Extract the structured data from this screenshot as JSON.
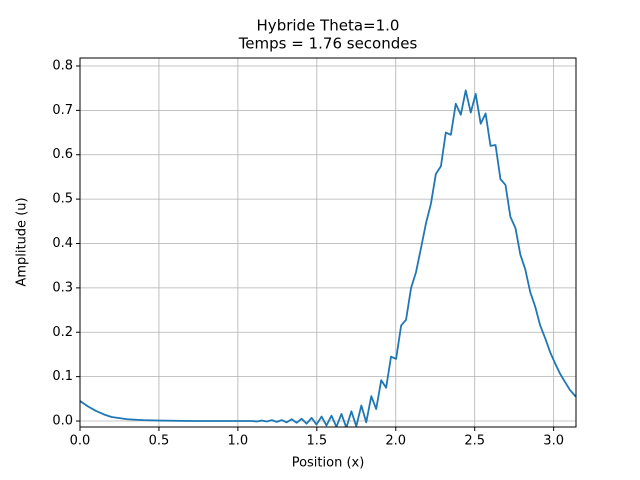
{
  "chart_data": {
    "type": "line",
    "title": [
      "Hybride Theta=1.0",
      "Temps = 1.76 secondes"
    ],
    "xlabel": "Position (x)",
    "ylabel": "Amplitude (u)",
    "x": [
      0,
      0.05,
      0.1,
      0.15,
      0.2,
      0.3,
      0.4,
      0.5,
      0.7,
      1.0,
      1.089,
      1.12,
      1.152,
      1.183,
      1.215,
      1.246,
      1.278,
      1.309,
      1.341,
      1.372,
      1.404,
      1.435,
      1.467,
      1.498,
      1.53,
      1.561,
      1.593,
      1.624,
      1.656,
      1.687,
      1.719,
      1.75,
      1.782,
      1.813,
      1.845,
      1.876,
      1.908,
      1.939,
      1.97,
      2.002,
      2.034,
      2.065,
      2.097,
      2.128,
      2.16,
      2.191,
      2.223,
      2.254,
      2.286,
      2.317,
      2.349,
      2.38,
      2.412,
      2.443,
      2.475,
      2.506,
      2.538,
      2.569,
      2.6,
      2.632,
      2.663,
      2.695,
      2.726,
      2.758,
      2.789,
      2.82,
      2.852,
      2.883,
      2.915,
      2.946,
      2.978,
      3.009,
      3.04,
      3.072,
      3.103,
      3.14
    ],
    "series": [
      {
        "name": "u",
        "color": "#1f77b4",
        "values": [
          0.045,
          0.033,
          0.023,
          0.015,
          0.009,
          0.004,
          0.002,
          0.001,
          0.0,
          0.0,
          0.0,
          -0.001,
          0.001,
          -0.001,
          0.002,
          -0.002,
          0.002,
          -0.003,
          0.004,
          -0.004,
          0.005,
          -0.006,
          0.007,
          -0.008,
          0.01,
          -0.01,
          0.012,
          -0.013,
          0.016,
          -0.015,
          0.022,
          -0.012,
          0.035,
          -0.003,
          0.056,
          0.027,
          0.092,
          0.075,
          0.145,
          0.14,
          0.215,
          0.228,
          0.3,
          0.335,
          0.39,
          0.445,
          0.49,
          0.557,
          0.574,
          0.65,
          0.645,
          0.715,
          0.69,
          0.745,
          0.695,
          0.737,
          0.67,
          0.693,
          0.62,
          0.622,
          0.545,
          0.532,
          0.46,
          0.435,
          0.375,
          0.342,
          0.29,
          0.258,
          0.215,
          0.187,
          0.155,
          0.13,
          0.107,
          0.088,
          0.07,
          0.055
        ]
      }
    ],
    "xlim": [
      0,
      3.14159
    ],
    "ylim": [
      -0.0135,
      0.818
    ],
    "xticks": [
      {
        "value": 0,
        "label": "0.0"
      },
      0.5,
      {
        "value": 1,
        "label": "1.0"
      },
      1.5,
      {
        "value": 2,
        "label": "2.0"
      },
      2.5,
      {
        "value": 3,
        "label": "3.0"
      }
    ],
    "yticks": [
      {
        "value": 0,
        "label": "0.0"
      },
      0.1,
      0.2,
      0.3,
      0.4,
      0.5,
      0.6,
      0.7,
      0.8
    ],
    "grid": true
  }
}
